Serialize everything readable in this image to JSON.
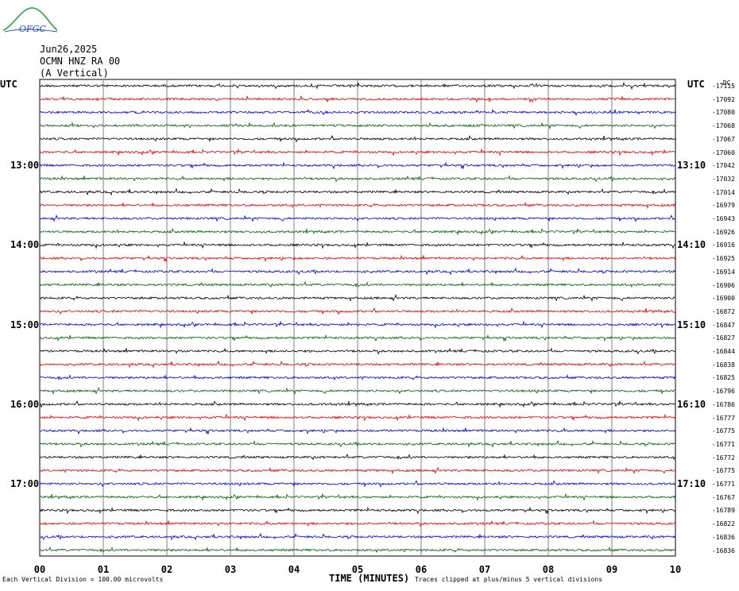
{
  "logo": {
    "text": "OFGC",
    "color": "#2a9a3a",
    "accent": "#1d4fbf"
  },
  "header": {
    "date": "Jun26,2025",
    "station": "OCMN HNZ RA 00",
    "component": "(A Vertical)"
  },
  "utc_label_left": "UTC",
  "utc_label_right": "UTC",
  "left_time_labels": [
    "13:00",
    "14:00",
    "15:00",
    "16:00",
    "17:00"
  ],
  "right_time_labels": [
    "13:10",
    "14:10",
    "15:10",
    "16:10",
    "17:10"
  ],
  "mean_header": "-DC",
  "trace_means": [
    "-17115",
    "-17092",
    "-17080",
    "-17068",
    "-17067",
    "-17060",
    "-17042",
    "-17032",
    "-17014",
    "-16979",
    "-16943",
    "-16926",
    "-16916",
    "-16925",
    "-16914",
    "-16906",
    "-16900",
    "-16872",
    "-16847",
    "-16827",
    "-16844",
    "-16838",
    "-16825",
    "-16796",
    "-16786",
    "-16777",
    "-16775",
    "-16771",
    "-16772",
    "-16775",
    "-16771",
    "-16767",
    "-16789",
    "-16822",
    "-16836",
    "-16836"
  ],
  "x_ticks": [
    "00",
    "01",
    "02",
    "03",
    "04",
    "05",
    "06",
    "07",
    "08",
    "09",
    "10"
  ],
  "x_axis_label": "TIME (MINUTES)",
  "footnote_left": "Each Vertical Division =  100.00 microvolts",
  "footnote_right": "Traces clipped at plus/minus 5 vertical divisions",
  "chart_data": {
    "type": "line",
    "title": "OCMN HNZ RA 00 (A Vertical) Jun26,2025",
    "xlabel": "TIME (MINUTES)",
    "xlim": [
      0,
      10
    ],
    "trace_minutes_per_line": 10,
    "trace_count": 36,
    "colors_cycle": [
      "#000000",
      "#e00000",
      "#0000d0",
      "#006000"
    ],
    "grid": true,
    "trace_offsets_dc": [
      -17115,
      -17092,
      -17080,
      -17068,
      -17067,
      -17060,
      -17042,
      -17032,
      -17014,
      -16979,
      -16943,
      -16926,
      -16916,
      -16925,
      -16914,
      -16906,
      -16900,
      -16872,
      -16847,
      -16827,
      -16844,
      -16838,
      -16825,
      -16796,
      -16786,
      -16777,
      -16775,
      -16771,
      -16772,
      -16775,
      -16771,
      -16767,
      -16789,
      -16822,
      -16836,
      -16836
    ]
  }
}
